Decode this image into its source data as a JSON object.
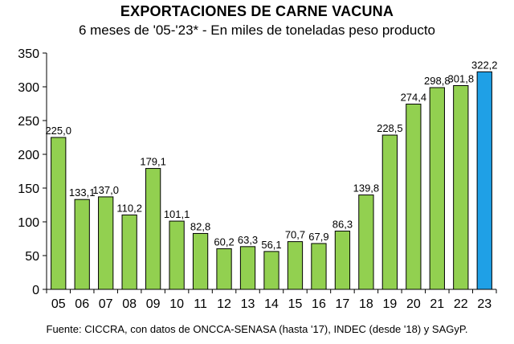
{
  "title": "EXPORTACIONES DE CARNE VACUNA",
  "subtitle": "6 meses de '05-'23* - En miles de toneladas peso producto",
  "source": "Fuente: CICCRA, con datos de ONCCA-SENASA (hasta '17), INDEC (desde '18) y SAGyP.",
  "chart_data": {
    "type": "bar",
    "categories": [
      "05",
      "06",
      "07",
      "08",
      "09",
      "10",
      "11",
      "12",
      "13",
      "14",
      "15",
      "16",
      "17",
      "18",
      "19",
      "20",
      "21",
      "22",
      "23"
    ],
    "values": [
      225.0,
      133.1,
      137.0,
      110.2,
      179.1,
      101.1,
      82.8,
      60.2,
      63.3,
      56.1,
      70.7,
      67.9,
      86.3,
      139.8,
      228.5,
      274.4,
      298.8,
      301.8,
      322.2
    ],
    "data_labels": [
      "225,0",
      "133,1",
      "137,0",
      "110,2",
      "179,1",
      "101,1",
      "82,8",
      "60,2",
      "63,3",
      "56,1",
      "70,7",
      "67,9",
      "86,3",
      "139,8",
      "228,5",
      "274,4",
      "298,8",
      "301,8",
      "322,2"
    ],
    "yticks": [
      0,
      50,
      100,
      150,
      200,
      250,
      300,
      350
    ],
    "ylim": [
      0,
      350
    ],
    "grid": false,
    "colors": {
      "default": "#92D050",
      "highlight": "#1FA0E6",
      "outline": "#000000"
    },
    "highlight_index": 18
  }
}
